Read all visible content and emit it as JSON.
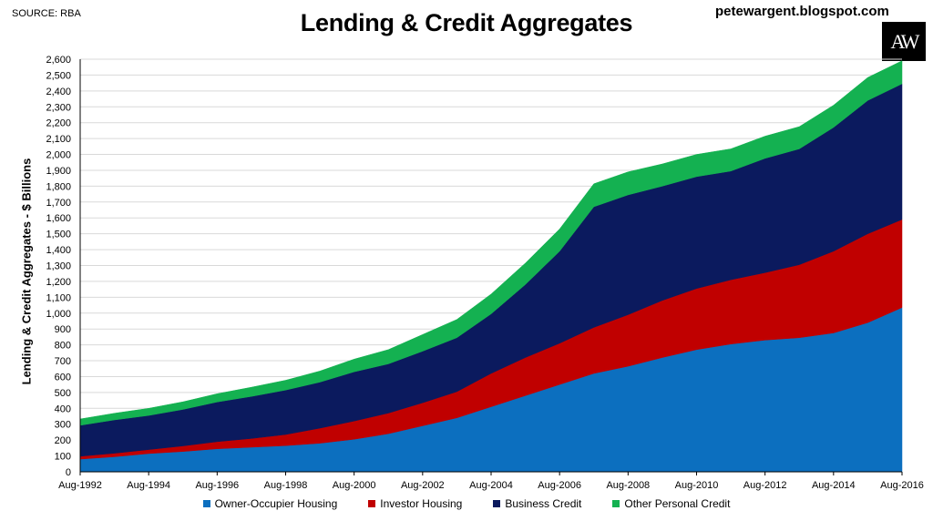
{
  "header": {
    "source": "SOURCE: RBA",
    "title": "Lending & Credit Aggregates",
    "blog": "petewargent.blogspot.com",
    "logo_text": "AW"
  },
  "colors": {
    "owner_occupier": "#0c6fbf",
    "investor": "#c00000",
    "business": "#0b1a5e",
    "other_personal": "#14b151"
  },
  "chart_data": {
    "type": "area",
    "stacked": true,
    "ylabel": "Lending & Credit Aggregates - $ Billions",
    "xlabel": "",
    "ylim": [
      0,
      2600
    ],
    "yticks": [
      "0",
      "100",
      "200",
      "300",
      "400",
      "500",
      "600",
      "700",
      "800",
      "900",
      "1,000",
      "1,100",
      "1,200",
      "1,300",
      "1,400",
      "1,500",
      "1,600",
      "1,700",
      "1,800",
      "1,900",
      "2,000",
      "2,100",
      "2,200",
      "2,300",
      "2,400",
      "2,500",
      "2,600"
    ],
    "xticks": [
      "Aug-1992",
      "Aug-1994",
      "Aug-1996",
      "Aug-1998",
      "Aug-2000",
      "Aug-2002",
      "Aug-2004",
      "Aug-2006",
      "Aug-2008",
      "Aug-2010",
      "Aug-2012",
      "Aug-2014",
      "Aug-2016"
    ],
    "grid": "horizontal",
    "legend_position": "bottom",
    "x": [
      "Aug-1992",
      "Aug-1993",
      "Aug-1994",
      "Aug-1995",
      "Aug-1996",
      "Aug-1997",
      "Aug-1998",
      "Aug-1999",
      "Aug-2000",
      "Aug-2001",
      "Aug-2002",
      "Aug-2003",
      "Aug-2004",
      "Aug-2005",
      "Aug-2006",
      "Aug-2007",
      "Aug-2008",
      "Aug-2009",
      "Aug-2010",
      "Aug-2011",
      "Aug-2012",
      "Aug-2013",
      "Aug-2014",
      "Aug-2015",
      "Aug-2016"
    ],
    "series": [
      {
        "name": "Owner-Occupier Housing",
        "values": [
          80,
          95,
          115,
          128,
          145,
          155,
          165,
          180,
          205,
          240,
          290,
          340,
          410,
          480,
          550,
          620,
          665,
          720,
          770,
          805,
          830,
          845,
          875,
          940,
          1035
        ]
      },
      {
        "name": "Investor Housing",
        "values": [
          18,
          22,
          25,
          35,
          45,
          55,
          70,
          95,
          115,
          130,
          145,
          165,
          210,
          240,
          260,
          290,
          325,
          360,
          385,
          405,
          425,
          460,
          515,
          560,
          555
        ]
      },
      {
        "name": "Business Credit",
        "values": [
          195,
          210,
          215,
          230,
          250,
          265,
          280,
          290,
          310,
          310,
          325,
          340,
          375,
          460,
          580,
          760,
          755,
          720,
          705,
          685,
          720,
          730,
          780,
          840,
          855
        ]
      },
      {
        "name": "Other Personal Credit",
        "values": [
          40,
          42,
          45,
          48,
          52,
          58,
          62,
          70,
          80,
          90,
          105,
          115,
          125,
          135,
          140,
          145,
          145,
          140,
          140,
          140,
          140,
          140,
          140,
          145,
          145
        ]
      }
    ]
  }
}
